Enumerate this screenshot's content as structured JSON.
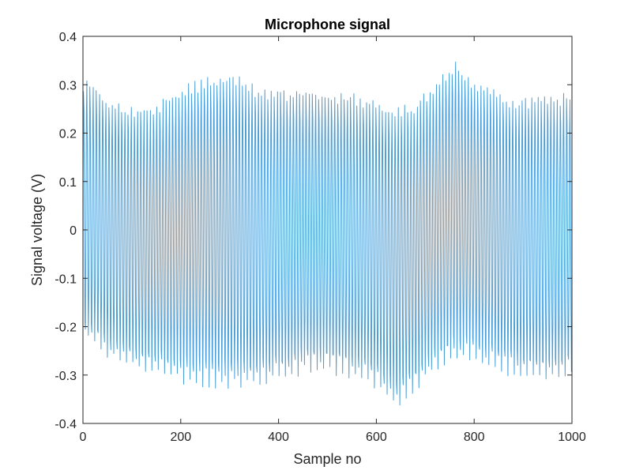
{
  "chart_data": {
    "type": "line",
    "title": "Microphone signal",
    "xlabel": "Sample no",
    "ylabel": "Signal voltage (V)",
    "xlim": [
      0,
      1000
    ],
    "ylim": [
      -0.4,
      0.4
    ],
    "x_ticks": [
      0,
      200,
      400,
      600,
      800,
      1000
    ],
    "x_tick_labels": [
      "0",
      "200",
      "400",
      "600",
      "800",
      "1000"
    ],
    "y_ticks": [
      -0.4,
      -0.3,
      -0.2,
      -0.1,
      0,
      0.1,
      0.2,
      0.3,
      0.4
    ],
    "y_tick_labels": [
      "-0.4",
      "-0.3",
      "-0.2",
      "-0.1",
      "0",
      "0.1",
      "0.2",
      "0.3",
      "0.4"
    ],
    "grid": false,
    "series": [
      {
        "color": "#4a9fd8",
        "sample_count": 1001,
        "oscillation_period_samples": 6.5,
        "envelope": {
          "x": [
            0,
            10,
            50,
            100,
            130,
            200,
            260,
            300,
            350,
            400,
            450,
            500,
            550,
            600,
            640,
            680,
            720,
            760,
            800,
            850,
            900,
            950,
            1000
          ],
          "upper": [
            0.31,
            0.32,
            0.28,
            0.26,
            0.26,
            0.3,
            0.33,
            0.33,
            0.31,
            0.3,
            0.3,
            0.29,
            0.29,
            0.27,
            0.26,
            0.27,
            0.32,
            0.36,
            0.32,
            0.29,
            0.28,
            0.29,
            0.29
          ],
          "lower": [
            -0.24,
            -0.23,
            -0.27,
            -0.29,
            -0.3,
            -0.32,
            -0.33,
            -0.33,
            -0.33,
            -0.32,
            -0.3,
            -0.3,
            -0.31,
            -0.33,
            -0.37,
            -0.34,
            -0.3,
            -0.28,
            -0.28,
            -0.3,
            -0.31,
            -0.32,
            -0.31
          ]
        }
      }
    ]
  }
}
